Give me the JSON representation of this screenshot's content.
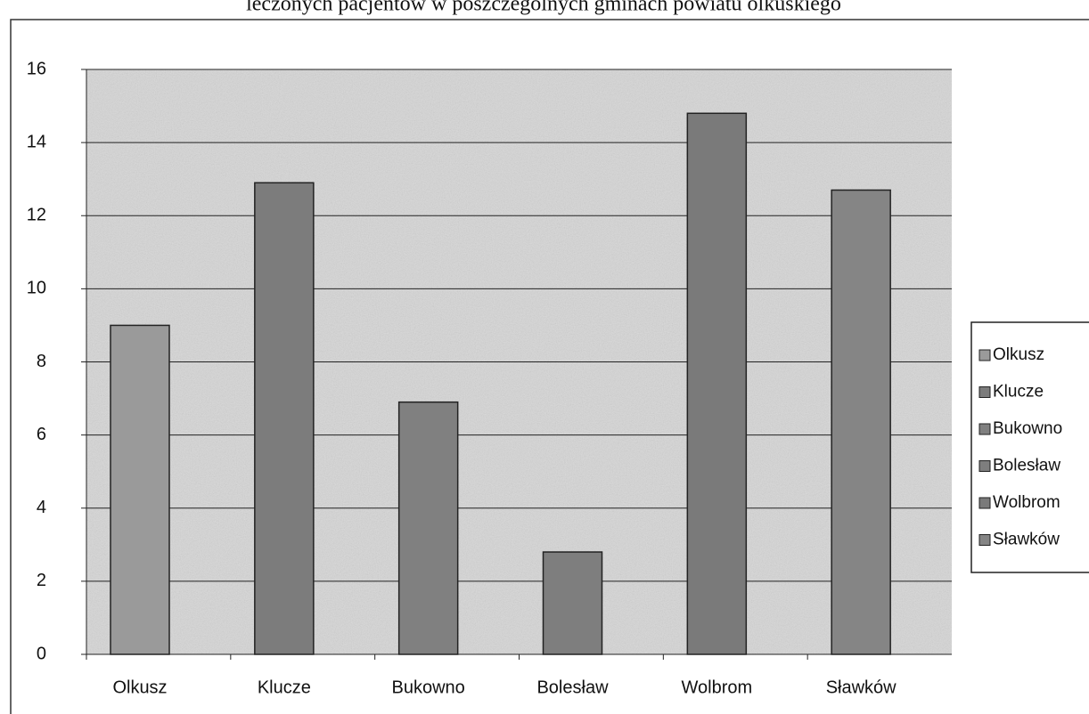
{
  "chart_data": {
    "type": "bar",
    "title": "leczonych pacjentów w poszczególnych gminach powiatu olkuskiego",
    "categories": [
      "Olkusz",
      "Klucze",
      "Bukowno",
      "Bolesław",
      "Wolbrom",
      "Sławków"
    ],
    "values": [
      9,
      12.9,
      6.9,
      2.8,
      14.8,
      12.7
    ],
    "colors": [
      "#9a9a9a",
      "#7c7c7c",
      "#808080",
      "#7e7e7e",
      "#7a7a7a",
      "#858585"
    ],
    "ylim": [
      0,
      16
    ],
    "yticks": [
      0,
      2,
      4,
      6,
      8,
      10,
      12,
      14,
      16
    ],
    "grid": true,
    "legend": "right"
  }
}
